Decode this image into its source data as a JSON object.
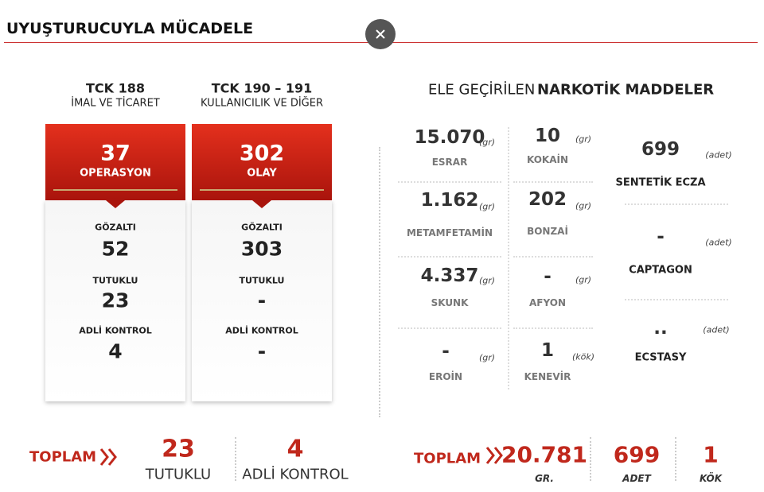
{
  "header": {
    "title": "UYUŞTURUCUYLA MÜCADELE"
  },
  "left": {
    "columns": [
      {
        "title": "TCK 188",
        "subtitle": "İMAL VE TİCARET",
        "count": "37",
        "count_label": "OPERASYON",
        "stats": [
          {
            "label": "GÖZALTI",
            "value": "52"
          },
          {
            "label": "TUTUKLU",
            "value": "23"
          },
          {
            "label": "ADLİ KONTROL",
            "value": "4"
          }
        ]
      },
      {
        "title": "TCK 190 – 191",
        "subtitle": "KULLANICILIK VE DİĞER",
        "count": "302",
        "count_label": "OLAY",
        "stats": [
          {
            "label": "GÖZALTI",
            "value": "303"
          },
          {
            "label": "TUTUKLU",
            "value": "-"
          },
          {
            "label": "ADLİ KONTROL",
            "value": "-"
          }
        ]
      }
    ],
    "total": {
      "label": "TOPLAM",
      "items": [
        {
          "value": "23",
          "label": "TUTUKLU"
        },
        {
          "value": "4",
          "label": "ADLİ KONTROL"
        }
      ]
    }
  },
  "right": {
    "title_plain": "ELE GEÇİRİLEN",
    "title_bold": "NARKOTİK MADDELER",
    "items": [
      {
        "value": "15.070",
        "unit": "(gr)",
        "name": "ESRAR"
      },
      {
        "value": "1.162",
        "unit": "(gr)",
        "name": "METAMFETAMİN"
      },
      {
        "value": "4.337",
        "unit": "(gr)",
        "name": "SKUNK"
      },
      {
        "value": "-",
        "unit": "(gr)",
        "name": "EROİN"
      },
      {
        "value": "10",
        "unit": "(gr)",
        "name": "KOKAİN"
      },
      {
        "value": "202",
        "unit": "(gr)",
        "name": "BONZAİ"
      },
      {
        "value": "-",
        "unit": "(gr)",
        "name": "AFYON"
      },
      {
        "value": "1",
        "unit": "(kök)",
        "name": "KENEVİR"
      },
      {
        "value": "699",
        "unit": "(adet)",
        "name": "SENTETİK ECZA"
      },
      {
        "value": "-",
        "unit": "(adet)",
        "name": "CAPTAGON"
      },
      {
        "value": "..",
        "unit": "(adet)",
        "name": "ECSTASY"
      }
    ],
    "total": {
      "label": "TOPLAM",
      "items": [
        {
          "value": "20.781",
          "label": "GR."
        },
        {
          "value": "699",
          "label": "ADET"
        },
        {
          "value": "1",
          "label": "KÖK"
        }
      ]
    }
  }
}
